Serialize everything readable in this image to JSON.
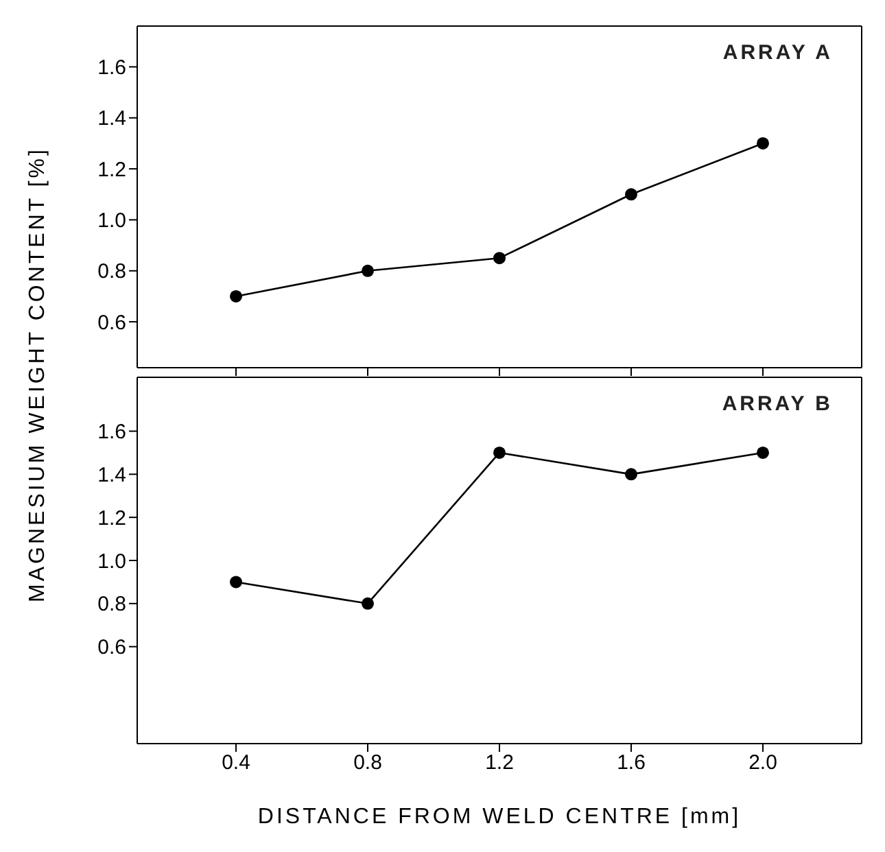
{
  "chart_data": [
    {
      "type": "line",
      "ylabel": "MAGNESIUM WEIGHT CONTENT [%]",
      "annotations": [
        "ARRAY A"
      ],
      "x": [
        0.4,
        0.8,
        1.2,
        1.6,
        2.0
      ],
      "xlim": [
        0.1,
        2.3
      ],
      "xticks": [
        0.4,
        0.8,
        1.2,
        1.6,
        2
      ],
      "ylim": [
        0.42,
        1.76
      ],
      "yticks": [
        0.6,
        0.8,
        {
          "value": 1,
          "label": "1.0"
        },
        1.2,
        1.4,
        1.6
      ],
      "tick_labels": "y",
      "grid": false,
      "marker": "circle",
      "line_style": "solid",
      "series": [
        {
          "color": "#000000",
          "values": [
            0.7,
            0.8,
            0.85,
            1.1,
            1.3
          ]
        }
      ]
    },
    {
      "type": "line",
      "xlabel": "DISTANCE FROM WELD CENTRE [mm]",
      "annotations": [
        "ARRAY B"
      ],
      "x": [
        0.4,
        0.8,
        1.2,
        1.6,
        2.0
      ],
      "xlim": [
        0.1,
        2.3
      ],
      "xticks": [
        0.4,
        0.8,
        1.2,
        1.6,
        {
          "value": 2,
          "label": "2.0"
        }
      ],
      "ylim": [
        0.15,
        1.85
      ],
      "yticks": [
        0.6,
        0.8,
        {
          "value": 1,
          "label": "1.0"
        },
        1.2,
        1.4,
        1.6
      ],
      "grid": false,
      "marker": "circle",
      "line_style": "solid",
      "series": [
        {
          "color": "#000000",
          "values": [
            0.9,
            0.8,
            1.5,
            1.4,
            1.5
          ]
        }
      ]
    }
  ]
}
